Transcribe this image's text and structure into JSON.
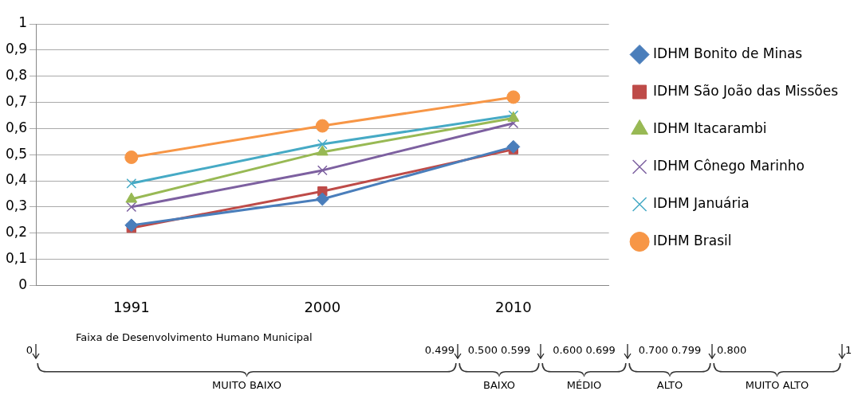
{
  "chart_data": {
    "type": "line",
    "categories": [
      "1991",
      "2000",
      "2010"
    ],
    "series": [
      {
        "name": "IDHM Bonito de Minas",
        "color": "#4a7ebb",
        "marker": "diamond",
        "values": [
          0.23,
          0.33,
          0.53
        ]
      },
      {
        "name": "IDHM São João das Missões",
        "color": "#be4b48",
        "marker": "square",
        "values": [
          0.22,
          0.36,
          0.52
        ]
      },
      {
        "name": "IDHM Itacarambi",
        "color": "#98b954",
        "marker": "triangle",
        "values": [
          0.33,
          0.51,
          0.64
        ]
      },
      {
        "name": "IDHM Cônego Marinho",
        "color": "#7d60a0",
        "marker": "cross",
        "values": [
          0.3,
          0.44,
          0.62
        ]
      },
      {
        "name": "IDHM Januária",
        "color": "#46aac5",
        "marker": "cross",
        "values": [
          0.39,
          0.54,
          0.65
        ]
      },
      {
        "name": "IDHM Brasil",
        "color": "#f79646",
        "marker": "circle",
        "values": [
          0.49,
          0.61,
          0.72
        ]
      }
    ],
    "ylim": [
      0,
      1
    ],
    "yticks": [
      0,
      {
        "value": 0.1,
        "label": "0,1"
      },
      {
        "value": 0.2,
        "label": "0,2"
      },
      {
        "value": 0.3,
        "label": "0,3"
      },
      {
        "value": 0.4,
        "label": "0,4"
      },
      {
        "value": 0.5,
        "label": "0,5"
      },
      {
        "value": 0.6,
        "label": "0,6"
      },
      {
        "value": 0.7,
        "label": "0,7"
      },
      {
        "value": 0.8,
        "label": "0,8"
      },
      {
        "value": 0.9,
        "label": "0,9"
      },
      1
    ],
    "grid": "y",
    "legend": "right",
    "annotations": [
      "Faixa de Desenvolvimento Humano Municipal",
      "0",
      "0.499",
      "0.500 0.599",
      "0.600 0.699",
      "0.700 0.799",
      "0.800",
      "1",
      "MUITO BAIXO",
      "BAIXO",
      "MÉDIO",
      "ALTO",
      "MUITO ALTO"
    ]
  }
}
